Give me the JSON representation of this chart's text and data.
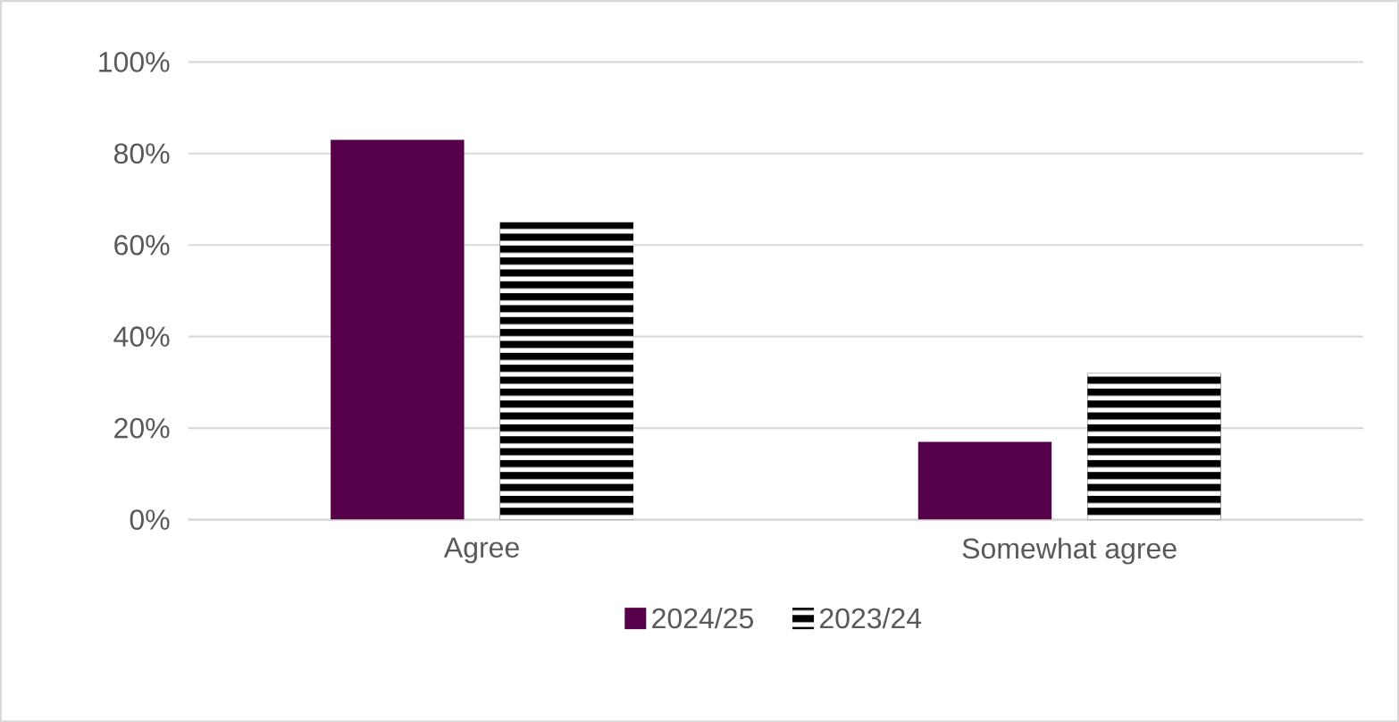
{
  "chart_data": {
    "type": "bar",
    "categories": [
      "Agree",
      "Somewhat agree"
    ],
    "series": [
      {
        "name": "2024/25",
        "color": "#56004a",
        "values": [
          83,
          17
        ]
      },
      {
        "name": "2023/24",
        "color": "#000000",
        "values": [
          65,
          32
        ]
      }
    ],
    "ylim": [
      0,
      100
    ],
    "yticks": [
      {
        "value": 0,
        "label": "0%"
      },
      {
        "value": 20,
        "label": "20%"
      },
      {
        "value": 40,
        "label": "40%"
      },
      {
        "value": 60,
        "label": "60%"
      },
      {
        "value": 80,
        "label": "80%"
      },
      {
        "value": 100,
        "label": "100%"
      }
    ],
    "grid": "y",
    "legend": "bottom"
  }
}
